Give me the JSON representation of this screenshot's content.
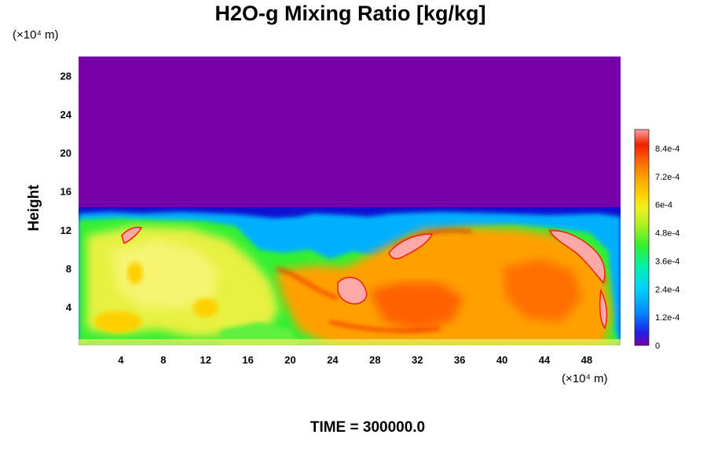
{
  "chart_data": {
    "type": "heatmap",
    "title": "H2O-g Mixing Ratio [kg/kg]",
    "ylabel": "Height",
    "x_unit": "(×10⁴ m)",
    "y_unit": "(×10⁴ m)",
    "xlim": [
      0,
      51.2
    ],
    "ylim": [
      0,
      30
    ],
    "x_ticks": [
      4,
      8,
      12,
      16,
      20,
      24,
      28,
      32,
      36,
      40,
      44,
      48
    ],
    "y_ticks": [
      4,
      8,
      12,
      16,
      20,
      24,
      28
    ],
    "x_tick_labels": [
      "4",
      "8",
      "12",
      "16",
      "20",
      "24",
      "28",
      "32",
      "36",
      "40",
      "44",
      "48"
    ],
    "y_tick_labels": [
      "4",
      "8",
      "12",
      "16",
      "20",
      "24",
      "28"
    ],
    "colorbar": {
      "range": [
        0,
        0.00092
      ],
      "tick_values": [
        0,
        0.00012,
        0.00024,
        0.00036,
        0.00048,
        0.0006,
        0.00072,
        0.00084
      ],
      "tick_labels": [
        "0",
        "1.2e-4",
        "2.4e-4",
        "3.6e-4",
        "4.8e-4",
        "6e-4",
        "7.2e-4",
        "8.4e-4"
      ],
      "colors": [
        "#7700a8",
        "#2020e8",
        "#0088ff",
        "#00d0ff",
        "#00f0b0",
        "#30f030",
        "#b0f020",
        "#f0f020",
        "#ffd000",
        "#ffa000",
        "#ff6000",
        "#f02000",
        "#ffa0a0"
      ]
    },
    "field_description_values": {
      "upper_layer_value": 0,
      "moist_layer_top_height": 13.5,
      "left_region_typical": 0.00062,
      "right_region_typical": 0.00076,
      "peak_value": 0.00088
    },
    "caption": "TIME = 300000.0"
  }
}
